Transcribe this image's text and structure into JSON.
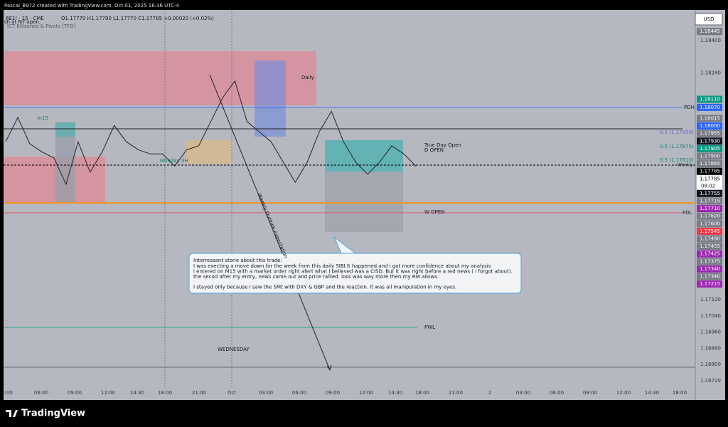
{
  "header": {
    "credit": "Pascal_B972 created with TradingView.com, Oct 01, 2025 16:36 UTC-4",
    "symbol": "6E1! · 15 · CME",
    "ohlc": "O1.17770 H1.17790 L1.17770 C1.17785 +0.00020 (+0.02%)",
    "note1": "sh at NY open.",
    "indicator": "ICT Killzones & Pivots [TFO]"
  },
  "currency": "USD",
  "price_axis": [
    "1.18400",
    "1.18240",
    "1.17120",
    "1.17040",
    "1.16960",
    "1.16880",
    "1.16800",
    "1.16720"
  ],
  "price_badges": [
    {
      "label": "1.18445",
      "color": "#787b86"
    },
    {
      "label": "1.18110",
      "color": "#089981"
    },
    {
      "label": "1.18070",
      "color": "#2962ff"
    },
    {
      "label": "1.18015",
      "color": "#787b86"
    },
    {
      "label": "1.18000",
      "color": "#2962ff"
    },
    {
      "label": "1.17955",
      "color": "#787b86"
    },
    {
      "label": "1.17930",
      "color": "#131722"
    },
    {
      "label": "1.17905",
      "color": "#089981"
    },
    {
      "label": "1.17900",
      "color": "#787b86"
    },
    {
      "label": "1.17865",
      "color": "#787b86"
    },
    {
      "label": "1.17785",
      "color": "#000000"
    },
    {
      "label": "1.17785",
      "color": "#ffffff"
    },
    {
      "label": "1.17755",
      "color": "#131722"
    },
    {
      "label": "1.17715",
      "color": "#787b86"
    },
    {
      "label": "1.17710",
      "color": "#9c27b0"
    },
    {
      "label": "1.17620",
      "color": "#787b86"
    },
    {
      "label": "1.17600",
      "color": "#787b86"
    },
    {
      "label": "1.17545",
      "color": "#f23645"
    },
    {
      "label": "1.17480",
      "color": "#787b86"
    },
    {
      "label": "1.17455",
      "color": "#787b86"
    },
    {
      "label": "1.17425",
      "color": "#9c27b0"
    },
    {
      "label": "1.17375",
      "color": "#787b86"
    },
    {
      "label": "1.17340",
      "color": "#9c27b0"
    },
    {
      "label": "1.17340",
      "color": "#787b86"
    },
    {
      "label": "1.17215",
      "color": "#9c27b0"
    }
  ],
  "countdown": "08:02",
  "time_axis": [
    "3:00",
    "06:00",
    "09:00",
    "12:00",
    "14:30",
    "18:00",
    "21:00",
    "Oct",
    "03:00",
    "06:00",
    "09:00",
    "12:00",
    "14:30",
    "18:00",
    "21:00",
    "2",
    "03:00",
    "06:00",
    "09:00",
    "12:00",
    "14:30",
    "18:00"
  ],
  "chart_labels": {
    "daily": "Daily",
    "pdh": "PDH",
    "true_day_open": "True Day Open",
    "d_open": "D OPEN",
    "fib1": "0.5 (1.17950)",
    "fib2": "0.5 (1.17875)",
    "fib3": "0.5 (1.17810)",
    "weekly": "Weekly",
    "w_open": "W OPEN",
    "pdl": "PDL",
    "pwl": "PWL",
    "wednesday": "WEDNESDAY",
    "outlook": "Weekly Outlook expectation",
    "m15": "m15",
    "monday": "Monday 3H"
  },
  "price_path": [
    1.179,
    1.1802,
    1.1789,
    1.1785,
    1.1782,
    1.1769,
    1.179,
    1.1775,
    1.1785,
    1.1798,
    1.179,
    1.1786,
    1.1784,
    1.1784,
    1.1778,
    1.1786,
    1.1788,
    1.18,
    1.1812,
    1.182,
    1.18,
    1.1795,
    1.179,
    1.178,
    1.177,
    1.178,
    1.1795,
    1.1805,
    1.179,
    1.178,
    1.1774,
    1.178,
    1.1788,
    1.1784,
    1.1778
  ],
  "annotation": {
    "title": "Interressant storie about this trade:",
    "lines": [
      "I was execting a move down for the week from this daily SIBI.It happened and i got more confidence about my analysis",
      "i entered on M15 with a market order right afert what I believed was a CISD. But it was right before a red news ( i forgot about).",
      "the secod after my entry, news came out and price  rallied.  loss was way more then my RM allows.",
      "",
      "I stayed only because I saw the SMt with DXY & GBP and the reaction. It was all manipulation in my eyes."
    ]
  },
  "brand": "TradingView"
}
